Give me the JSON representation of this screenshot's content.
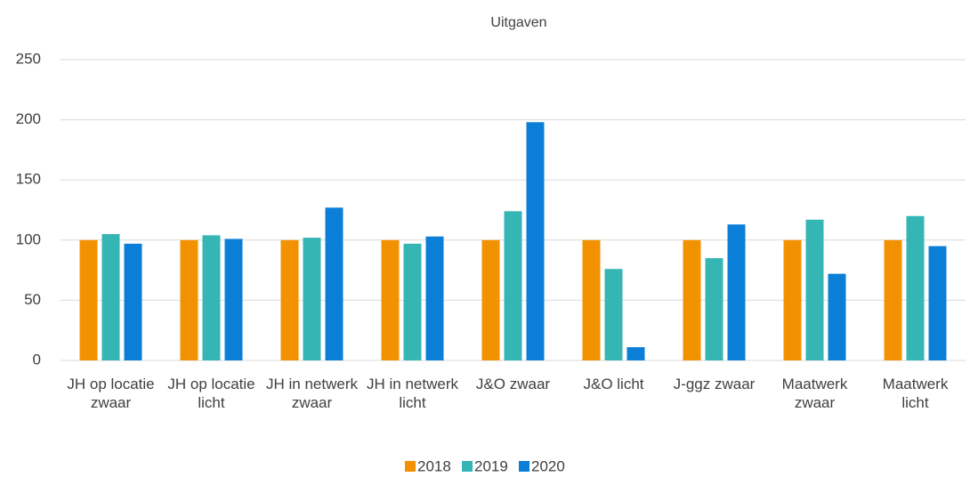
{
  "chart_data": {
    "type": "bar",
    "title": "Uitgaven",
    "categories": [
      "JH op locatie zwaar",
      "JH op locatie licht",
      "JH in netwerk zwaar",
      "JH in netwerk licht",
      "J&O zwaar",
      "J&O licht",
      "J-ggz zwaar",
      "Maatwerk zwaar",
      "Maatwerk licht"
    ],
    "series": [
      {
        "name": "2018",
        "color": "#f39200",
        "values": [
          100,
          100,
          100,
          100,
          100,
          100,
          100,
          100,
          100
        ]
      },
      {
        "name": "2019",
        "color": "#35b6b4",
        "values": [
          105,
          104,
          102,
          97,
          124,
          76,
          85,
          117,
          120
        ]
      },
      {
        "name": "2020",
        "color": "#0b7fd8",
        "values": [
          97,
          101,
          127,
          103,
          198,
          11,
          113,
          72,
          95
        ]
      }
    ],
    "ylim": [
      0,
      250
    ],
    "yticks": [
      0,
      50,
      100,
      150,
      200,
      250
    ],
    "grid": true,
    "legend": "bottom"
  }
}
